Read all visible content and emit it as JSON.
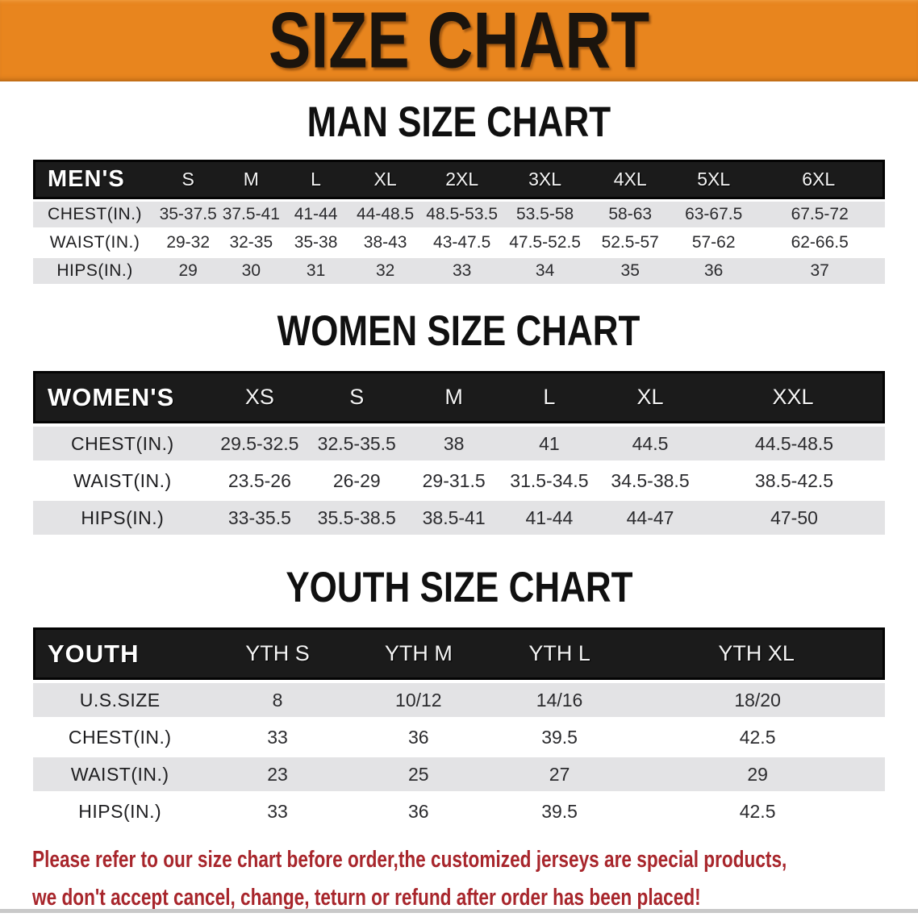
{
  "banner": {
    "title": "SIZE CHART"
  },
  "sections": [
    {
      "heading": "MAN SIZE CHART",
      "label": "MEN'S",
      "columns": [
        "S",
        "M",
        "L",
        "XL",
        "2XL",
        "3XL",
        "4XL",
        "5XL",
        "6XL"
      ],
      "rows": [
        {
          "label": "CHEST(IN.)",
          "values": [
            "35-37.5",
            "37.5-41",
            "41-44",
            "44-48.5",
            "48.5-53.5",
            "53.5-58",
            "58-63",
            "63-67.5",
            "67.5-72"
          ]
        },
        {
          "label": "WAIST(IN.)",
          "values": [
            "29-32",
            "32-35",
            "35-38",
            "38-43",
            "43-47.5",
            "47.5-52.5",
            "52.5-57",
            "57-62",
            "62-66.5"
          ]
        },
        {
          "label": "HIPS(IN.)",
          "values": [
            "29",
            "30",
            "31",
            "32",
            "33",
            "34",
            "35",
            "36",
            "37"
          ]
        }
      ]
    },
    {
      "heading": "WOMEN SIZE CHART",
      "label": "WOMEN'S",
      "columns": [
        "XS",
        "S",
        "M",
        "L",
        "XL",
        "XXL"
      ],
      "rows": [
        {
          "label": "CHEST(IN.)",
          "values": [
            "29.5-32.5",
            "32.5-35.5",
            "38",
            "41",
            "44.5",
            "44.5-48.5"
          ]
        },
        {
          "label": "WAIST(IN.)",
          "values": [
            "23.5-26",
            "26-29",
            "29-31.5",
            "31.5-34.5",
            "34.5-38.5",
            "38.5-42.5"
          ]
        },
        {
          "label": "HIPS(IN.)",
          "values": [
            "33-35.5",
            "35.5-38.5",
            "38.5-41",
            "41-44",
            "44-47",
            "47-50"
          ]
        }
      ]
    },
    {
      "heading": "YOUTH SIZE CHART",
      "label": "YOUTH",
      "columns": [
        "YTH S",
        "YTH M",
        "YTH L",
        "YTH XL"
      ],
      "rows": [
        {
          "label": "U.S.SIZE",
          "values": [
            "8",
            "10/12",
            "14/16",
            "18/20"
          ]
        },
        {
          "label": "CHEST(IN.)",
          "values": [
            "33",
            "36",
            "39.5",
            "42.5"
          ]
        },
        {
          "label": "WAIST(IN.)",
          "values": [
            "23",
            "25",
            "27",
            "29"
          ]
        },
        {
          "label": "HIPS(IN.)",
          "values": [
            "33",
            "36",
            "39.5",
            "42.5"
          ]
        }
      ]
    }
  ],
  "disclaimer": {
    "line1": "Please refer to our size chart before order,the customized jerseys are special products,",
    "line2": "we don't accept cancel, change, teturn or refund after order has been placed!"
  },
  "colors": {
    "banner_bg": "#E8851E",
    "banner_text": "#1B140D",
    "table_header_bg": "#1B1B1B",
    "table_header_text": "#F4F4F4",
    "row_stripe": "#E3E3E5",
    "disclaimer_text": "#A8262C"
  }
}
